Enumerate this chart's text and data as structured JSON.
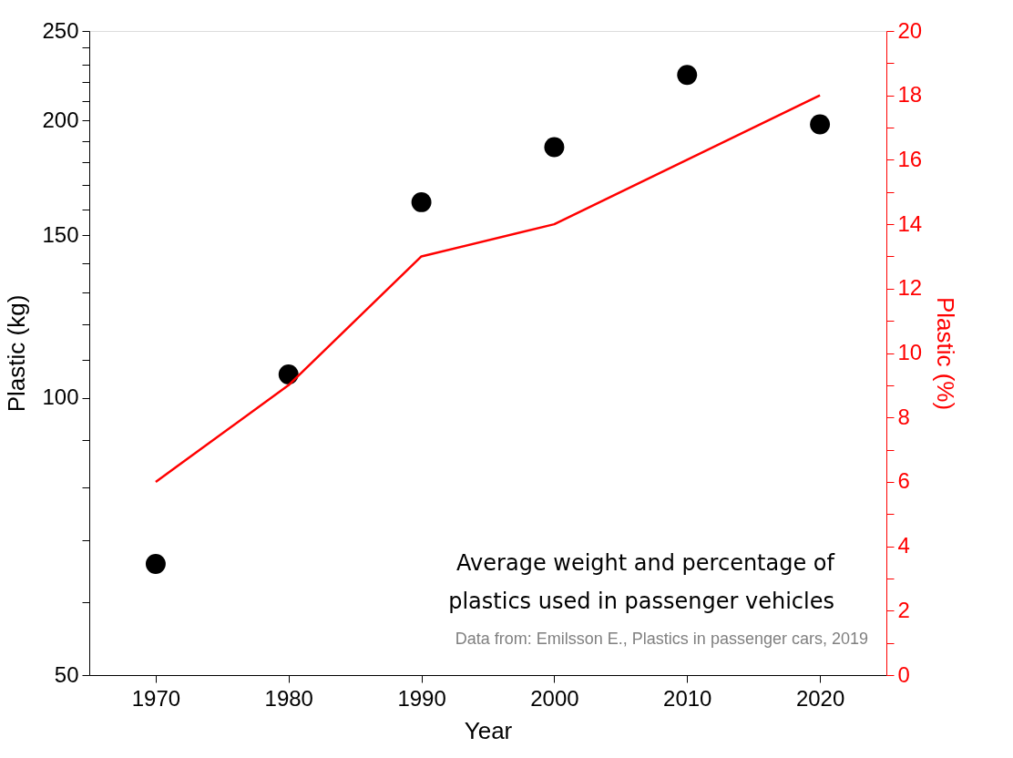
{
  "chart_data": {
    "type": "scatter",
    "xlabel": "Year",
    "ylabel": "Plastic (kg)",
    "y2label": "Plastic (%)",
    "x": [
      1970,
      1980,
      1990,
      2000,
      2010,
      2020
    ],
    "xlim": [
      1965,
      2025
    ],
    "xticks": [
      1970,
      1980,
      1990,
      2000,
      2010,
      2020
    ],
    "ylim": [
      50,
      250
    ],
    "yticks": [
      50,
      {
        "value": 60,
        "label": null
      },
      {
        "value": 70,
        "label": null
      },
      {
        "value": 80,
        "label": null
      },
      {
        "value": 90,
        "label": null
      },
      100,
      {
        "value": 110,
        "label": null
      },
      {
        "value": 120,
        "label": null
      },
      {
        "value": 130,
        "label": null
      },
      {
        "value": 140,
        "label": null
      },
      150,
      {
        "value": 160,
        "label": null
      },
      {
        "value": 170,
        "label": null
      },
      {
        "value": 180,
        "label": null
      },
      {
        "value": 190,
        "label": null
      },
      200,
      {
        "value": 210,
        "label": null
      },
      {
        "value": 220,
        "label": null
      },
      {
        "value": 230,
        "label": null
      },
      {
        "value": 240,
        "label": null
      },
      250
    ],
    "y2lim": [
      0,
      20
    ],
    "y2ticks": [
      0,
      {
        "value": 1,
        "label": null
      },
      2,
      {
        "value": 3,
        "label": null
      },
      4,
      {
        "value": 5,
        "label": null
      },
      6,
      {
        "value": 7,
        "label": null
      },
      8,
      {
        "value": 9,
        "label": null
      },
      10,
      {
        "value": 11,
        "label": null
      },
      12,
      {
        "value": 13,
        "label": null
      },
      14,
      {
        "value": 15,
        "label": null
      },
      16,
      {
        "value": 17,
        "label": null
      },
      18,
      {
        "value": 19,
        "label": null
      },
      20
    ],
    "log": "y",
    "series": [
      {
        "marker": "circle",
        "color": "#000000",
        "values": [
          66,
          106,
          163,
          187,
          224,
          198
        ]
      },
      {
        "type": "line",
        "axis": "y2",
        "color": "#ff0000",
        "values": [
          6,
          9,
          13,
          14,
          16,
          18
        ]
      }
    ],
    "annotations": [
      "Average weight and percentage of",
      "plastics used in passenger vehicles",
      "Data from: Emilsson E., Plastics in passenger cars, 2019"
    ]
  }
}
